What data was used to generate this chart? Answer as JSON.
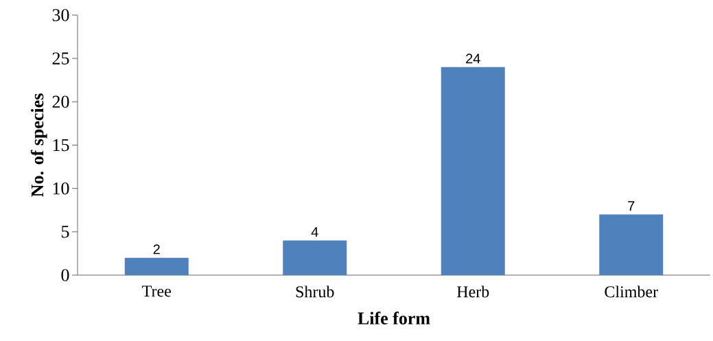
{
  "chart_data": {
    "type": "bar",
    "xlabel": "Life form",
    "ylabel": "No. of species",
    "categories": [
      "Tree",
      "Shrub",
      "Herb",
      "Climber"
    ],
    "values": [
      2,
      4,
      24,
      7
    ],
    "color": "#4f81bd",
    "ylim": [
      0,
      30
    ],
    "yticks": [
      0,
      5,
      10,
      15,
      20,
      25,
      30
    ],
    "grid": false,
    "data_labels": true
  }
}
